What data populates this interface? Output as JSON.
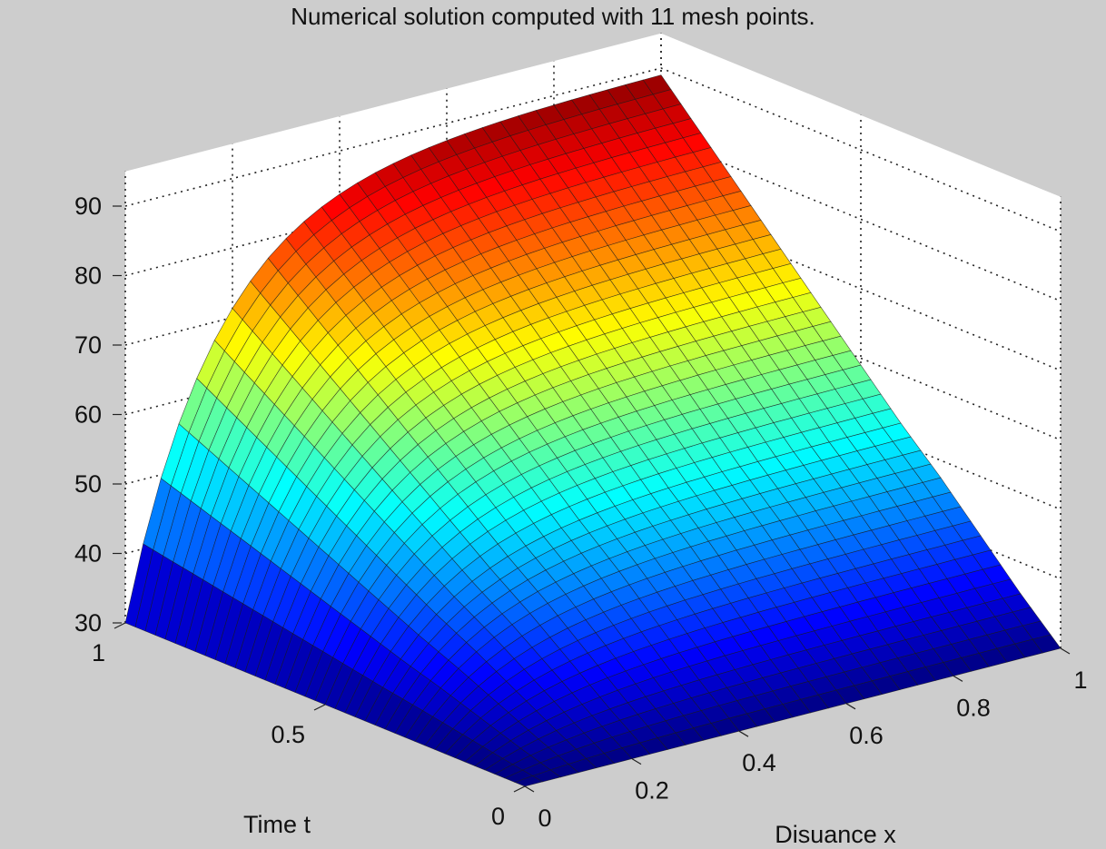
{
  "chart_data": {
    "type": "surface3d",
    "title": "Numerical solution computed with 11 mesh points.",
    "xlabel": "Disuance x",
    "ylabel": "Time t",
    "zlabel": "",
    "xlim": [
      0,
      1
    ],
    "ylim": [
      0,
      1
    ],
    "zlim": [
      30,
      90
    ],
    "xticks": [
      "0",
      "0.2",
      "0.4",
      "0.6",
      "0.8",
      "1"
    ],
    "yticks": [
      "0",
      "0.5",
      "1"
    ],
    "zticks": [
      "30",
      "40",
      "50",
      "60",
      "70",
      "80",
      "90"
    ],
    "grid": true,
    "colormap": "jet",
    "mesh_points": 11,
    "x": [
      0,
      0.1,
      0.2,
      0.3,
      0.4,
      0.5,
      0.6,
      0.7,
      0.8,
      0.9,
      1.0
    ],
    "t": [
      0,
      0.1,
      0.2,
      0.3,
      0.4,
      0.5,
      0.6,
      0.7,
      0.8,
      0.9,
      1.0
    ],
    "u_x0": [
      30,
      30,
      30,
      30,
      30,
      30,
      30,
      30,
      30,
      30,
      30
    ],
    "u_x1": [
      30,
      35.5,
      41.5,
      47.5,
      53,
      59,
      65,
      71,
      77,
      83,
      89
    ],
    "u_t0": [
      30,
      30,
      30,
      30,
      30,
      30,
      30,
      30,
      30,
      30,
      30
    ]
  }
}
